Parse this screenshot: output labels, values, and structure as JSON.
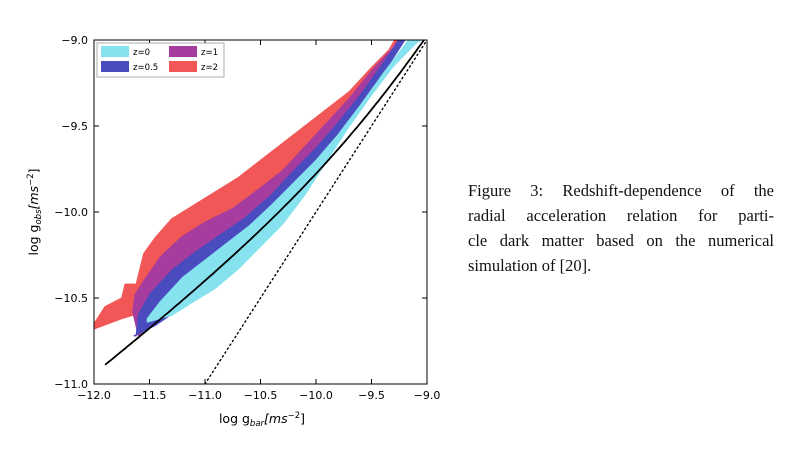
{
  "chart_data": {
    "type": "area",
    "xlabel": "log g",
    "xlabel_sub": "bar",
    "xlabel_unit": "[ms",
    "xlabel_exp": "−2",
    "xlabel_close": "]",
    "ylabel": "log g",
    "ylabel_sub": "obs",
    "ylabel_unit": "[ms",
    "ylabel_exp": "−2",
    "ylabel_close": "]",
    "xlim": [
      -12.0,
      -9.0
    ],
    "ylim": [
      -11.0,
      -9.0
    ],
    "xticks": [
      -12.0,
      -11.5,
      -11.0,
      -10.5,
      -10.0,
      -9.5,
      -9.0
    ],
    "yticks": [
      -11.0,
      -10.5,
      -10.0,
      -9.5,
      -9.0
    ],
    "xtick_labels": [
      "−12.0",
      "−11.5",
      "−11.0",
      "−10.5",
      "−10.0",
      "−9.5",
      "−9.0"
    ],
    "ytick_labels": [
      "−11.0",
      "−10.5",
      "−10.0",
      "−9.5",
      "−9.0"
    ],
    "legend_position": "top-left",
    "series": [
      {
        "name": "z=2",
        "color": "#f25757",
        "upper": [
          [
            -12.0,
            -10.65
          ],
          [
            -11.9,
            -10.55
          ],
          [
            -11.75,
            -10.5
          ],
          [
            -11.72,
            -10.42
          ],
          [
            -11.62,
            -10.42
          ],
          [
            -11.55,
            -10.24
          ],
          [
            -11.45,
            -10.15
          ],
          [
            -11.3,
            -10.04
          ],
          [
            -11.1,
            -9.96
          ],
          [
            -10.9,
            -9.88
          ],
          [
            -10.7,
            -9.8
          ],
          [
            -10.5,
            -9.7
          ],
          [
            -10.3,
            -9.6
          ],
          [
            -10.1,
            -9.5
          ],
          [
            -9.9,
            -9.4
          ],
          [
            -9.7,
            -9.3
          ],
          [
            -9.5,
            -9.16
          ],
          [
            -9.3,
            -9.03
          ],
          [
            -9.24,
            -9.0
          ]
        ],
        "lower": [
          [
            -12.0,
            -10.68
          ],
          [
            -11.75,
            -10.62
          ],
          [
            -11.55,
            -10.58
          ],
          [
            -11.35,
            -10.45
          ],
          [
            -11.1,
            -10.3
          ],
          [
            -10.85,
            -10.16
          ],
          [
            -10.6,
            -10.02
          ],
          [
            -10.35,
            -9.85
          ],
          [
            -10.1,
            -9.68
          ],
          [
            -9.85,
            -9.5
          ],
          [
            -9.6,
            -9.3
          ],
          [
            -9.4,
            -9.12
          ],
          [
            -9.29,
            -9.0
          ]
        ]
      },
      {
        "name": "z=1",
        "color": "#a63c9e",
        "upper": [
          [
            -11.65,
            -10.58
          ],
          [
            -11.63,
            -10.48
          ],
          [
            -11.55,
            -10.4
          ],
          [
            -11.4,
            -10.26
          ],
          [
            -11.2,
            -10.14
          ],
          [
            -11.0,
            -10.06
          ],
          [
            -10.75,
            -9.98
          ],
          [
            -10.5,
            -9.86
          ],
          [
            -10.3,
            -9.76
          ],
          [
            -10.1,
            -9.62
          ],
          [
            -9.9,
            -9.48
          ],
          [
            -9.7,
            -9.34
          ],
          [
            -9.5,
            -9.18
          ],
          [
            -9.3,
            -9.04
          ],
          [
            -9.25,
            -9.0
          ]
        ],
        "lower": [
          [
            -11.6,
            -10.72
          ],
          [
            -11.4,
            -10.6
          ],
          [
            -11.2,
            -10.47
          ],
          [
            -11.0,
            -10.35
          ],
          [
            -10.8,
            -10.23
          ],
          [
            -10.6,
            -10.1
          ],
          [
            -10.35,
            -9.93
          ],
          [
            -10.1,
            -9.76
          ],
          [
            -9.85,
            -9.56
          ],
          [
            -9.6,
            -9.34
          ],
          [
            -9.4,
            -9.14
          ],
          [
            -9.26,
            -9.0
          ]
        ]
      },
      {
        "name": "z=0.5",
        "color": "#4a4bbf",
        "upper": [
          [
            -11.62,
            -10.72
          ],
          [
            -11.6,
            -10.6
          ],
          [
            -11.5,
            -10.48
          ],
          [
            -11.3,
            -10.34
          ],
          [
            -11.1,
            -10.24
          ],
          [
            -10.9,
            -10.15
          ],
          [
            -10.65,
            -10.04
          ],
          [
            -10.4,
            -9.9
          ],
          [
            -10.2,
            -9.76
          ],
          [
            -10.0,
            -9.63
          ],
          [
            -9.8,
            -9.48
          ],
          [
            -9.6,
            -9.32
          ],
          [
            -9.4,
            -9.14
          ],
          [
            -9.25,
            -9.0
          ]
        ],
        "lower": [
          [
            -11.64,
            -10.72
          ],
          [
            -11.45,
            -10.66
          ],
          [
            -11.2,
            -10.55
          ],
          [
            -11.0,
            -10.43
          ],
          [
            -10.75,
            -10.27
          ],
          [
            -10.5,
            -10.1
          ],
          [
            -10.25,
            -9.93
          ],
          [
            -10.0,
            -9.74
          ],
          [
            -9.75,
            -9.52
          ],
          [
            -9.5,
            -9.3
          ],
          [
            -9.3,
            -9.1
          ],
          [
            -9.2,
            -9.0
          ]
        ]
      },
      {
        "name": "z=0",
        "color": "#86e2ee",
        "upper": [
          [
            -11.52,
            -10.62
          ],
          [
            -11.4,
            -10.52
          ],
          [
            -11.2,
            -10.38
          ],
          [
            -11.0,
            -10.28
          ],
          [
            -10.8,
            -10.18
          ],
          [
            -10.6,
            -10.08
          ],
          [
            -10.4,
            -9.96
          ],
          [
            -10.2,
            -9.83
          ],
          [
            -10.0,
            -9.7
          ],
          [
            -9.8,
            -9.55
          ],
          [
            -9.6,
            -9.38
          ],
          [
            -9.4,
            -9.2
          ],
          [
            -9.2,
            -9.03
          ],
          [
            -9.17,
            -9.0
          ]
        ],
        "lower": [
          [
            -11.52,
            -10.64
          ],
          [
            -11.3,
            -10.6
          ],
          [
            -11.1,
            -10.52
          ],
          [
            -10.9,
            -10.44
          ],
          [
            -10.7,
            -10.33
          ],
          [
            -10.5,
            -10.2
          ],
          [
            -10.3,
            -10.07
          ],
          [
            -10.1,
            -9.9
          ],
          [
            -9.9,
            -9.7
          ],
          [
            -9.7,
            -9.5
          ],
          [
            -9.5,
            -9.32
          ],
          [
            -9.3,
            -9.15
          ],
          [
            -9.1,
            -9.02
          ],
          [
            -9.05,
            -9.0
          ]
        ]
      }
    ],
    "reference_curves": [
      {
        "style": "solid",
        "color": "#000000",
        "kind": "rar"
      },
      {
        "style": "dotted",
        "color": "#000000",
        "kind": "one-to-one"
      }
    ],
    "legend": [
      {
        "label": "z=0",
        "color": "#86e2ee"
      },
      {
        "label": "z=1",
        "color": "#a63c9e"
      },
      {
        "label": "z=0.5",
        "color": "#4a4bbf"
      },
      {
        "label": "z=2",
        "color": "#f25757"
      }
    ]
  },
  "caption": {
    "lines": [
      "Figure 3:  Redshift-dependence of the",
      "radial acceleration relation for parti-",
      "cle dark matter based on the numerical",
      "simulation of [20]."
    ]
  }
}
